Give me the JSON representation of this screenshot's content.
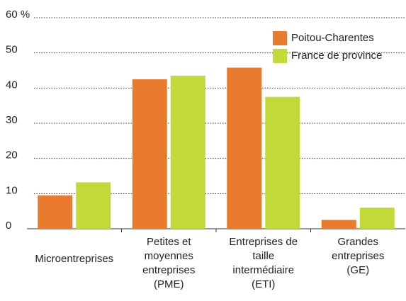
{
  "chart_data": {
    "type": "bar",
    "categories": [
      "Microentreprises",
      "Petites et\nmoyennes\nentreprises\n(PME)",
      "Entreprises de\ntaille\nintermédiaire\n(ETI)",
      "Grandes\nentreprises\n(GE)"
    ],
    "series": [
      {
        "name": "Poitou-Charentes",
        "color": "#e87b2e",
        "values": [
          9.5,
          42.5,
          45.8,
          2.5
        ]
      },
      {
        "name": "France de province",
        "color": "#c3d93a",
        "values": [
          13.2,
          43.5,
          37.5,
          6
        ]
      }
    ],
    "ylim": [
      0,
      60
    ],
    "yticks": [
      0,
      10,
      20,
      30,
      40,
      50,
      {
        "value": 60,
        "label": "60 %"
      }
    ],
    "grid": true,
    "legend": "top-right"
  }
}
